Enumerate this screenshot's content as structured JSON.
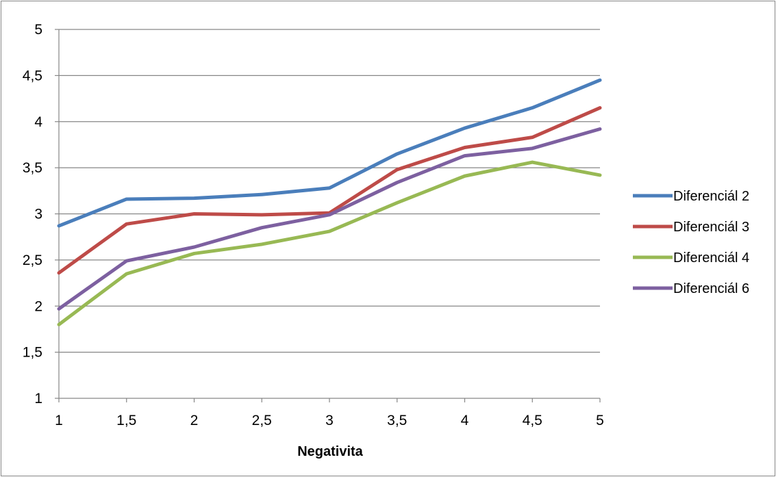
{
  "chart_data": {
    "type": "line",
    "x": [
      1,
      1.5,
      2,
      2.5,
      3,
      3.5,
      4,
      4.5,
      5
    ],
    "x_tick_labels": [
      "1",
      "1,5",
      "2",
      "2,5",
      "3",
      "3,5",
      "4",
      "4,5",
      "5"
    ],
    "y_tick_labels": [
      "1",
      "1,5",
      "2",
      "2,5",
      "3",
      "3,5",
      "4",
      "4,5",
      "5"
    ],
    "y_ticks": [
      1,
      1.5,
      2,
      2.5,
      3,
      3.5,
      4,
      4.5,
      5
    ],
    "xlabel": "Negativita",
    "ylabel": "",
    "title": "",
    "xlim": [
      1,
      5
    ],
    "ylim": [
      1,
      5
    ],
    "grid": "horizontal",
    "legend": "right",
    "series": [
      {
        "name": "Diferenciál 2",
        "color": "#4a7ebb",
        "values": [
          2.87,
          3.16,
          3.17,
          3.21,
          3.28,
          3.65,
          3.93,
          4.15,
          4.45
        ]
      },
      {
        "name": "Diferenciál 3",
        "color": "#be4b48",
        "values": [
          2.36,
          2.89,
          3.0,
          2.99,
          3.01,
          3.48,
          3.72,
          3.83,
          4.15
        ]
      },
      {
        "name": "Diferenciál 4",
        "color": "#98b954",
        "values": [
          1.8,
          2.35,
          2.57,
          2.67,
          2.81,
          3.12,
          3.41,
          3.56,
          3.42
        ]
      },
      {
        "name": "Diferenciál 6",
        "color": "#7d60a0",
        "values": [
          1.97,
          2.49,
          2.64,
          2.85,
          2.99,
          3.34,
          3.63,
          3.71,
          3.92
        ]
      }
    ]
  }
}
